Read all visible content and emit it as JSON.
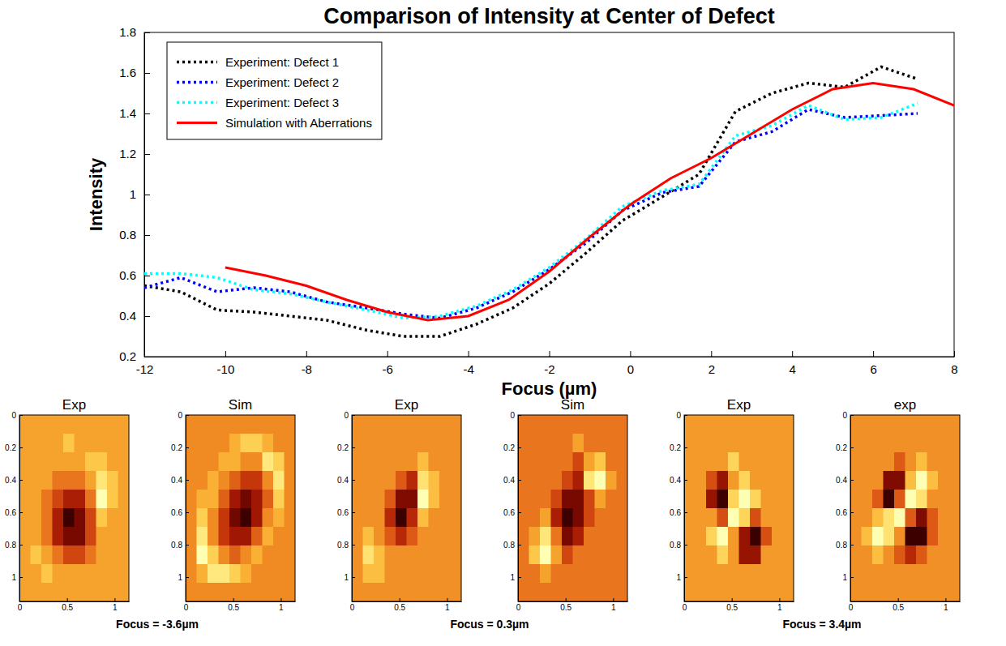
{
  "chart_data": [
    {
      "type": "line",
      "title": "Comparison of Intensity at Center of Defect",
      "x_label": "Focus (µm)",
      "y_label": "Intensity",
      "xlim": [
        -12,
        8
      ],
      "xticks": [
        -12,
        -10,
        -8,
        -6,
        -4,
        -2,
        0,
        2,
        4,
        6,
        8
      ],
      "ylim": [
        0.2,
        1.8
      ],
      "yticks": [
        0.2,
        0.4,
        0.6,
        0.8,
        1,
        1.2,
        1.4,
        1.6,
        1.8
      ],
      "grid": false,
      "legend": "top-left",
      "series": [
        {
          "name": "Experiment: Defect 1",
          "color": "#000000",
          "line_style": "dotted",
          "x": [
            -12,
            -11.1,
            -10.2,
            -9.3,
            -8.4,
            -7.5,
            -6.5,
            -5.6,
            -4.7,
            -3.8,
            -2.9,
            -2,
            -1.1,
            -0.2,
            0.8,
            1.7,
            2.6,
            3.5,
            4.4,
            5.3,
            6.2,
            7.1
          ],
          "values": [
            0.55,
            0.52,
            0.43,
            0.42,
            0.4,
            0.38,
            0.33,
            0.3,
            0.3,
            0.36,
            0.44,
            0.56,
            0.71,
            0.87,
            0.99,
            1.1,
            1.41,
            1.5,
            1.55,
            1.53,
            1.63,
            1.57
          ]
        },
        {
          "name": "Experiment: Defect 2",
          "color": "#0000ff",
          "line_style": "dotted",
          "x": [
            -12,
            -11.1,
            -10.2,
            -9.3,
            -8.4,
            -7.5,
            -6.5,
            -5.6,
            -4.7,
            -3.8,
            -2.9,
            -2,
            -1.1,
            -0.2,
            0.8,
            1.7,
            2.6,
            3.5,
            4.4,
            5.3,
            6.2,
            7.1
          ],
          "values": [
            0.54,
            0.59,
            0.52,
            0.54,
            0.52,
            0.47,
            0.44,
            0.41,
            0.39,
            0.44,
            0.52,
            0.63,
            0.76,
            0.92,
            1.01,
            1.04,
            1.26,
            1.31,
            1.42,
            1.38,
            1.39,
            1.4
          ]
        },
        {
          "name": "Experiment: Defect 3",
          "color": "#00ffff",
          "line_style": "dotted",
          "x": [
            -12,
            -11.1,
            -10.2,
            -9.3,
            -8.4,
            -7.5,
            -6.5,
            -5.6,
            -4.7,
            -3.8,
            -2.9,
            -2,
            -1.1,
            -0.2,
            0.8,
            1.7,
            2.6,
            3.5,
            4.4,
            5.3,
            6.2,
            7.1
          ],
          "values": [
            0.61,
            0.61,
            0.59,
            0.53,
            0.51,
            0.47,
            0.43,
            0.39,
            0.4,
            0.45,
            0.53,
            0.64,
            0.78,
            0.94,
            1.02,
            1.05,
            1.29,
            1.34,
            1.44,
            1.37,
            1.38,
            1.45
          ]
        },
        {
          "name": "Simulation with Aberrations",
          "color": "#ff0000",
          "line_style": "solid",
          "x": [
            -10,
            -9,
            -8,
            -7,
            -6,
            -5,
            -4,
            -3,
            -2,
            -1,
            0,
            1,
            2,
            3,
            4,
            5,
            6,
            7,
            8
          ],
          "values": [
            0.64,
            0.6,
            0.55,
            0.48,
            0.42,
            0.38,
            0.4,
            0.48,
            0.62,
            0.79,
            0.95,
            1.08,
            1.18,
            1.3,
            1.42,
            1.52,
            1.55,
            1.52,
            1.44
          ]
        }
      ]
    },
    {
      "type": "heatmap",
      "xlim": [
        0,
        1.15
      ],
      "xticks": [
        0,
        0.5,
        1
      ],
      "ylim": [
        0,
        1.15
      ],
      "yticks": [
        0,
        0.2,
        0.4,
        0.6,
        0.8,
        1
      ],
      "captions": [
        "Focus = -3.6µm",
        "Focus = 0.3µm",
        "Focus = 3.4µm"
      ],
      "panels": [
        {
          "title": "Exp",
          "cells": [
            [
              5,
              5,
              5,
              5,
              5,
              5,
              5,
              5,
              5,
              5
            ],
            [
              5,
              5,
              5,
              5,
              6,
              5,
              5,
              5,
              5,
              5
            ],
            [
              5,
              5,
              5,
              5,
              5,
              5,
              6,
              6,
              5,
              5
            ],
            [
              5,
              5,
              5,
              4,
              4,
              4,
              5,
              7,
              6,
              5
            ],
            [
              5,
              5,
              4,
              3,
              2,
              2,
              4,
              8,
              6,
              5
            ],
            [
              5,
              5,
              4,
              2,
              0,
              1,
              3,
              6,
              5,
              5
            ],
            [
              5,
              5,
              4,
              2,
              1,
              1,
              3,
              5,
              5,
              5
            ],
            [
              5,
              6,
              5,
              4,
              3,
              3,
              4,
              5,
              5,
              5
            ],
            [
              5,
              5,
              6,
              5,
              5,
              5,
              5,
              5,
              5,
              5
            ],
            [
              5,
              5,
              5,
              5,
              5,
              5,
              5,
              5,
              5,
              5
            ]
          ]
        },
        {
          "title": "Sim",
          "cells": [
            [
              5,
              5,
              5,
              5,
              5,
              5,
              5,
              5,
              5,
              5
            ],
            [
              5,
              5,
              5,
              5,
              6,
              7,
              7,
              6,
              5,
              5
            ],
            [
              5,
              5,
              5,
              6,
              6,
              5,
              5,
              8,
              7,
              5
            ],
            [
              5,
              5,
              6,
              5,
              4,
              3,
              3,
              5,
              8,
              5
            ],
            [
              5,
              6,
              6,
              4,
              2,
              1,
              2,
              4,
              7,
              5
            ],
            [
              5,
              7,
              5,
              3,
              1,
              0,
              2,
              5,
              6,
              5
            ],
            [
              5,
              8,
              5,
              3,
              2,
              2,
              4,
              6,
              5,
              5
            ],
            [
              5,
              9,
              7,
              5,
              4,
              5,
              6,
              5,
              5,
              5
            ],
            [
              5,
              6,
              8,
              8,
              7,
              6,
              5,
              5,
              5,
              5
            ],
            [
              5,
              5,
              5,
              5,
              5,
              5,
              5,
              5,
              5,
              5
            ]
          ]
        },
        {
          "title": "Exp",
          "cells": [
            [
              5,
              5,
              5,
              5,
              5,
              5,
              5,
              5,
              5,
              5
            ],
            [
              5,
              5,
              5,
              5,
              5,
              5,
              5,
              5,
              5,
              5
            ],
            [
              5,
              5,
              5,
              5,
              5,
              5,
              6,
              5,
              5,
              5
            ],
            [
              5,
              5,
              5,
              5,
              4,
              3,
              7,
              6,
              5,
              5
            ],
            [
              5,
              5,
              5,
              4,
              2,
              2,
              8,
              6,
              5,
              5
            ],
            [
              5,
              5,
              5,
              3,
              1,
              3,
              6,
              5,
              5,
              5
            ],
            [
              5,
              6,
              5,
              4,
              3,
              4,
              5,
              5,
              5,
              5
            ],
            [
              5,
              7,
              6,
              5,
              5,
              5,
              5,
              5,
              5,
              5
            ],
            [
              5,
              6,
              6,
              5,
              5,
              5,
              5,
              5,
              5,
              5
            ],
            [
              5,
              5,
              5,
              5,
              5,
              5,
              5,
              5,
              5,
              5
            ]
          ]
        },
        {
          "title": "Sim",
          "cells": [
            [
              5,
              5,
              5,
              5,
              5,
              5,
              5,
              5,
              5,
              5
            ],
            [
              5,
              5,
              5,
              5,
              5,
              6,
              5,
              5,
              5,
              5
            ],
            [
              5,
              5,
              5,
              5,
              5,
              4,
              6,
              7,
              5,
              5
            ],
            [
              5,
              5,
              5,
              5,
              4,
              3,
              8,
              9,
              6,
              5
            ],
            [
              5,
              5,
              5,
              4,
              2,
              2,
              4,
              6,
              5,
              5
            ],
            [
              5,
              5,
              6,
              3,
              1,
              2,
              4,
              5,
              5,
              5
            ],
            [
              5,
              6,
              8,
              5,
              2,
              3,
              5,
              5,
              5,
              5
            ],
            [
              5,
              7,
              9,
              6,
              4,
              5,
              5,
              5,
              5,
              5
            ],
            [
              5,
              5,
              6,
              5,
              5,
              5,
              5,
              5,
              5,
              5
            ],
            [
              5,
              5,
              5,
              5,
              5,
              5,
              5,
              5,
              5,
              5
            ]
          ]
        },
        {
          "title": "Exp",
          "cells": [
            [
              5,
              5,
              5,
              5,
              5,
              5,
              5,
              5,
              5,
              5
            ],
            [
              5,
              5,
              5,
              5,
              5,
              5,
              5,
              5,
              5,
              5
            ],
            [
              5,
              5,
              5,
              5,
              6,
              5,
              5,
              5,
              5,
              5
            ],
            [
              5,
              5,
              4,
              3,
              5,
              6,
              5,
              5,
              5,
              5
            ],
            [
              5,
              5,
              3,
              2,
              6,
              7,
              6,
              5,
              5,
              5
            ],
            [
              5,
              5,
              5,
              4,
              7,
              6,
              4,
              5,
              5,
              5
            ],
            [
              5,
              5,
              6,
              7,
              5,
              3,
              2,
              4,
              5,
              5
            ],
            [
              5,
              5,
              5,
              6,
              5,
              3,
              3,
              5,
              5,
              5
            ],
            [
              5,
              5,
              5,
              5,
              5,
              5,
              5,
              5,
              5,
              5
            ],
            [
              5,
              5,
              5,
              5,
              5,
              5,
              5,
              5,
              5,
              5
            ]
          ]
        },
        {
          "title": "exp",
          "cells": [
            [
              5,
              5,
              5,
              5,
              5,
              5,
              5,
              5,
              5,
              5
            ],
            [
              5,
              5,
              5,
              5,
              5,
              5,
              5,
              5,
              5,
              5
            ],
            [
              5,
              5,
              5,
              5,
              4,
              5,
              6,
              5,
              5,
              5
            ],
            [
              5,
              5,
              5,
              2,
              2,
              6,
              8,
              6,
              5,
              5
            ],
            [
              5,
              5,
              4,
              1,
              4,
              8,
              7,
              5,
              5,
              5
            ],
            [
              5,
              5,
              6,
              7,
              8,
              4,
              2,
              4,
              5,
              5
            ],
            [
              5,
              6,
              8,
              7,
              5,
              1,
              1,
              4,
              5,
              5
            ],
            [
              5,
              5,
              6,
              5,
              4,
              3,
              4,
              5,
              5,
              5
            ],
            [
              5,
              5,
              5,
              5,
              5,
              5,
              5,
              5,
              5,
              5
            ],
            [
              5,
              5,
              5,
              5,
              5,
              5,
              5,
              5,
              5,
              5
            ]
          ]
        }
      ]
    }
  ]
}
